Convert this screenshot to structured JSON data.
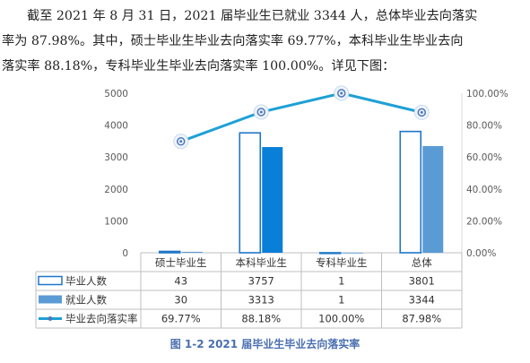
{
  "paragraph": {
    "line1": "截至 2021 年 8 月 31 日，2021 届毕业生已就业 3344 人，总体毕业去向落实",
    "line2": "率为 87.98%。其中，硕士毕业生毕业去向落实率 69.77%，本科毕业生毕业去向",
    "line3": "落实率 88.18%，专科毕业生毕业去向落实率 100.00%。详见下图："
  },
  "caption": "图 1-2 2021 届毕业生毕业去向落实率",
  "colors": {
    "graduates_bar_fill": "#ffffff",
    "graduates_bar_border": "#1f77c8",
    "employed_bar": "#0a7fd8",
    "employed_bar_light": "#5b9bd5",
    "rate_line": "#1ea0d6"
  },
  "chart_data": {
    "type": "bar+line",
    "categories": [
      "硕士毕业生",
      "本科毕业生",
      "专科毕业生",
      "总体"
    ],
    "series": [
      {
        "name": "毕业人数",
        "type": "bar",
        "axis": "left",
        "values": [
          43,
          3757,
          1,
          3801
        ],
        "labels": [
          "43",
          "3757",
          "1",
          "3801"
        ]
      },
      {
        "name": "就业人数",
        "type": "bar",
        "axis": "left",
        "values": [
          30,
          3313,
          1,
          3344
        ],
        "labels": [
          "30",
          "3313",
          "1",
          "3344"
        ]
      },
      {
        "name": "毕业去向落实率",
        "type": "line",
        "axis": "right",
        "values": [
          69.77,
          88.18,
          100.0,
          87.98
        ],
        "labels": [
          "69.77%",
          "88.18%",
          "100.00%",
          "87.98%"
        ]
      }
    ],
    "left_axis": {
      "ylim": [
        0,
        5000
      ],
      "ticks": [
        "0",
        "1000",
        "2000",
        "3000",
        "4000",
        "5000"
      ]
    },
    "right_axis": {
      "ylim": [
        0,
        100
      ],
      "ticks": [
        "0.00%",
        "20.00%",
        "40.00%",
        "60.00%",
        "80.00%",
        "100.00%"
      ]
    },
    "legend": "data-table",
    "grid": false
  }
}
